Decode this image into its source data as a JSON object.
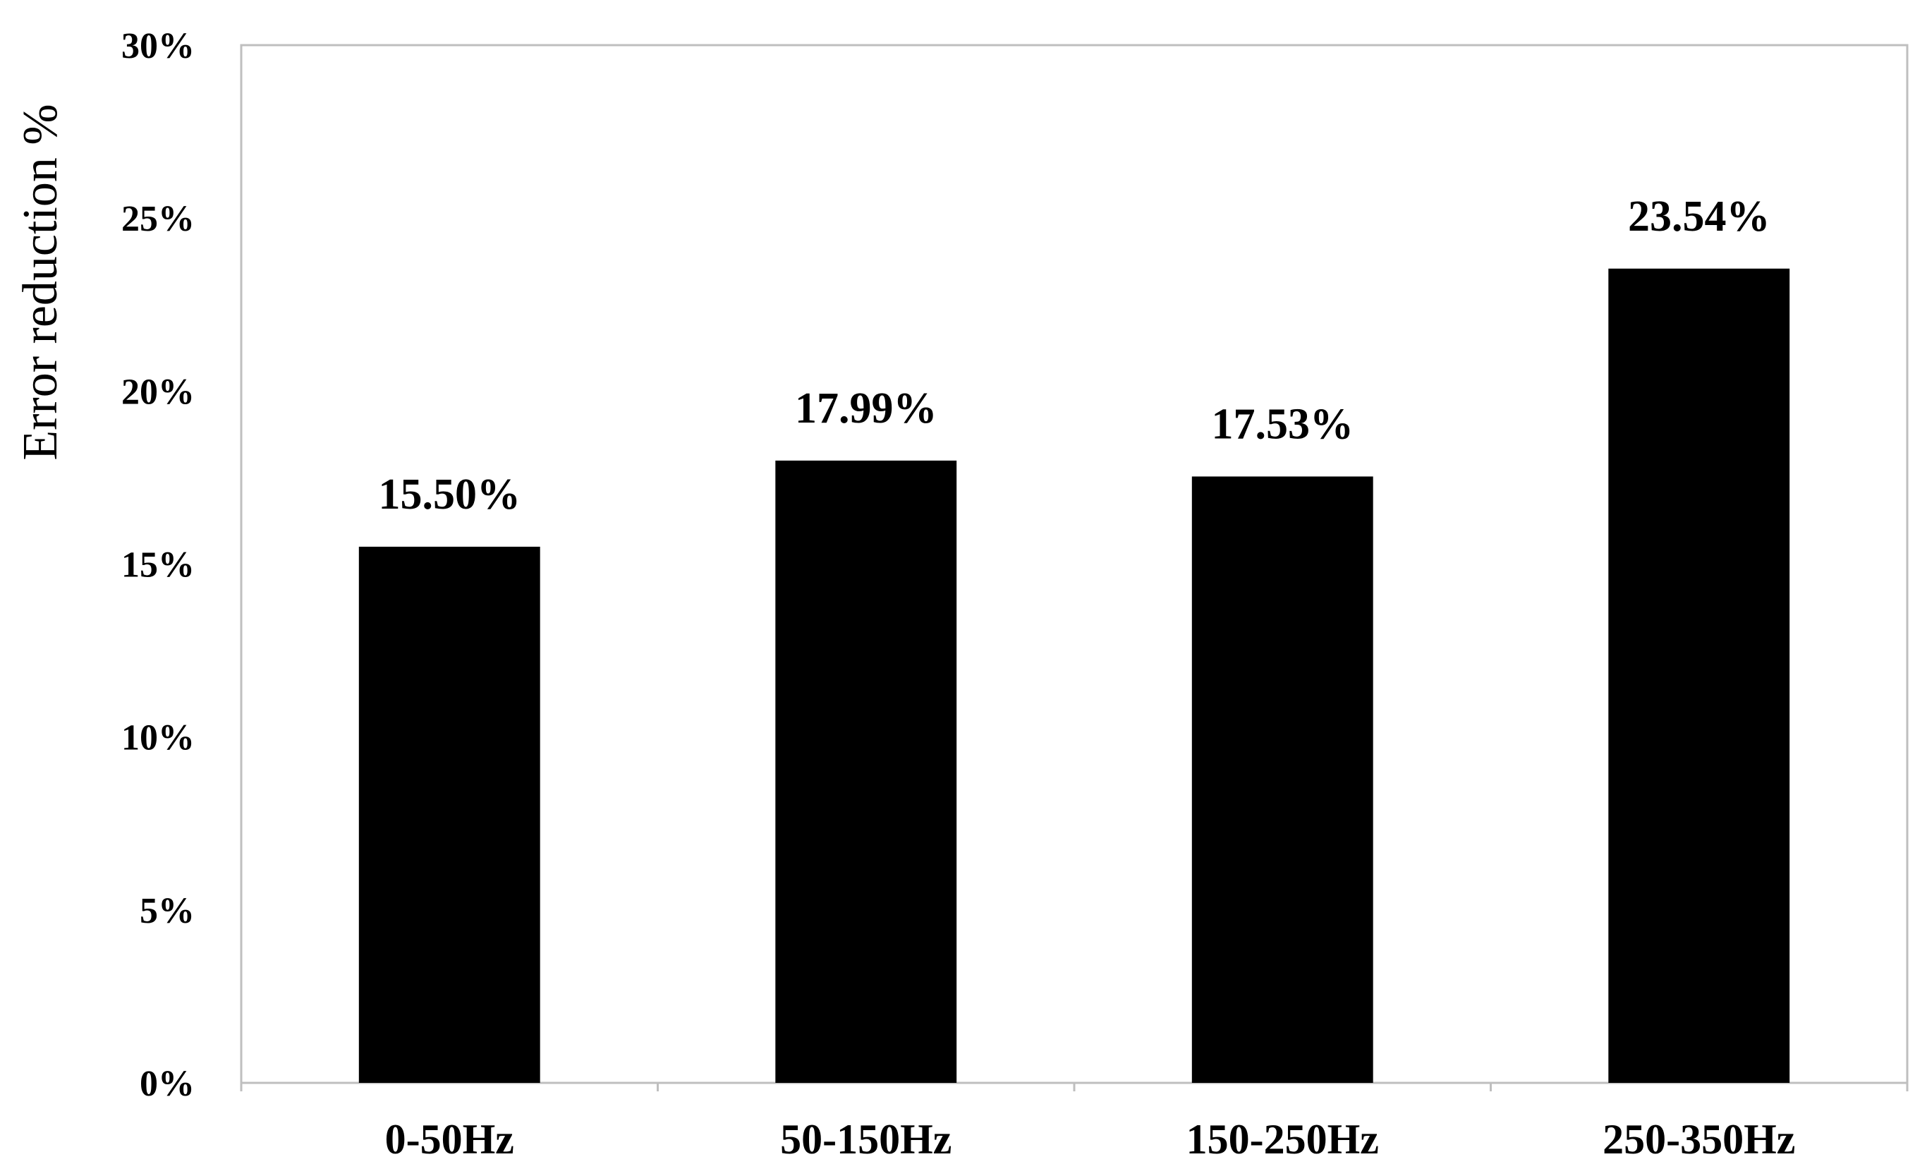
{
  "chart_data": {
    "type": "bar",
    "title": "",
    "xlabel": "",
    "ylabel": "Error reduction %",
    "categories": [
      "0-50Hz",
      "50-150Hz",
      "150-250Hz",
      "250-350Hz"
    ],
    "values": [
      15.5,
      17.99,
      17.53,
      23.54
    ],
    "data_labels": [
      "15.50%",
      "17.99%",
      "17.53%",
      "23.54%"
    ],
    "ylim": [
      0,
      30
    ],
    "yticks": [
      0,
      5,
      10,
      15,
      20,
      25,
      30
    ],
    "ytick_labels": [
      "0%",
      "5%",
      "10%",
      "15%",
      "20%",
      "25%",
      "30%"
    ],
    "grid": false,
    "legend": "none",
    "colors": {
      "bar": "#000000",
      "frame": "#bfbfbf",
      "text": "#000000"
    }
  }
}
